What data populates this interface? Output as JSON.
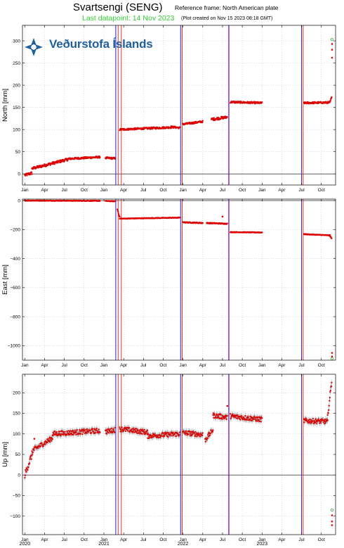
{
  "header": {
    "station": "Svartsengi (SENG)",
    "reference_frame": "Reference frame: North American plate",
    "last_datapoint": "Last datapoint: 14 Nov 2023",
    "plot_created": "(Plot created on Nov 15 2023 08:18 GMT)"
  },
  "logo": {
    "text": "Veðurstofa Íslands",
    "color": "#1f5f9d"
  },
  "colors": {
    "data": "#dd0000",
    "error": "#999999",
    "blue_line": "#2222cc",
    "red_line": "#ee3333",
    "purple_line": "#7722bb",
    "green_marker": "#33aa33",
    "grid": "#bbbbbb"
  },
  "chart_data": {
    "type": "scatter",
    "x_unit": "decimal year",
    "x_range": [
      2019.97,
      2023.93
    ],
    "month_ticks": [
      "Jan",
      "Apr",
      "Jul",
      "Oct",
      "Jan",
      "Apr",
      "Jul",
      "Oct",
      "Jan",
      "Apr",
      "Jul",
      "Oct",
      "Jan",
      "Apr",
      "Jul",
      "Oct"
    ],
    "year_labels": [
      "2020",
      "2021",
      "2022",
      "2023"
    ],
    "year_positions": [
      2020.0,
      2021.0,
      2022.0,
      2023.0
    ],
    "event_lines": [
      {
        "x": 2021.15,
        "color": "blue"
      },
      {
        "x": 2021.18,
        "color": "red"
      },
      {
        "x": 2021.22,
        "color": "red"
      },
      {
        "x": 2021.97,
        "color": "blue"
      },
      {
        "x": 2021.99,
        "color": "red"
      },
      {
        "x": 2022.58,
        "color": "purple"
      },
      {
        "x": 2023.5,
        "color": "blue"
      },
      {
        "x": 2023.52,
        "color": "red"
      }
    ],
    "panels": [
      {
        "ylabel": "North [mm]",
        "ylim": [
          -25,
          335
        ],
        "yticks": [
          0,
          50,
          100,
          150,
          200,
          250,
          300
        ],
        "ytick_labels": [
          "0",
          "50",
          "100",
          "150",
          "200",
          "250",
          "300"
        ],
        "error": 2,
        "series": [
          {
            "x0": 2020.0,
            "x1": 2020.09,
            "y0": -3,
            "y1": 2,
            "noise": 3
          },
          {
            "x0": 2020.09,
            "x1": 2020.55,
            "y0": 12,
            "y1": 33,
            "noise": 3
          },
          {
            "x0": 2020.55,
            "x1": 2020.95,
            "y0": 34,
            "y1": 38,
            "noise": 2
          },
          {
            "x0": 2021.02,
            "x1": 2021.14,
            "y0": 36,
            "y1": 35,
            "noise": 2
          },
          {
            "x0": 2021.2,
            "x1": 2021.85,
            "y0": 100,
            "y1": 105,
            "noise": 2
          },
          {
            "x0": 2021.85,
            "x1": 2021.96,
            "y0": 106,
            "y1": 104,
            "noise": 2
          },
          {
            "x0": 2022.0,
            "x1": 2022.25,
            "y0": 112,
            "y1": 118,
            "noise": 2
          },
          {
            "x0": 2022.36,
            "x1": 2022.56,
            "y0": 123,
            "y1": 128,
            "noise": 3
          },
          {
            "x0": 2022.6,
            "x1": 2023.0,
            "y0": 162,
            "y1": 160,
            "noise": 2
          },
          {
            "x0": 2023.53,
            "x1": 2023.86,
            "y0": 160,
            "y1": 161,
            "noise": 2
          },
          {
            "x0": 2023.86,
            "x1": 2023.88,
            "y0": 163,
            "y1": 172,
            "noise": 2
          }
        ],
        "extras": [
          {
            "x": 2023.885,
            "y": 303,
            "kind": "green"
          },
          {
            "x": 2023.885,
            "y": 293,
            "kind": "red"
          },
          {
            "x": 2023.885,
            "y": 280,
            "kind": "red"
          },
          {
            "x": 2023.885,
            "y": 262,
            "kind": "red"
          }
        ]
      },
      {
        "ylabel": "East [mm]",
        "ylim": [
          -1100,
          10
        ],
        "yticks": [
          0,
          -200,
          -400,
          -600,
          -800,
          -1000
        ],
        "ytick_labels": [
          "0",
          "−200",
          "−400",
          "−600",
          "−800",
          "−1000"
        ],
        "error": 3,
        "series": [
          {
            "x0": 2020.0,
            "x1": 2020.95,
            "y0": 0,
            "y1": -2,
            "noise": 2
          },
          {
            "x0": 2021.02,
            "x1": 2021.14,
            "y0": -3,
            "y1": -5,
            "noise": 2
          },
          {
            "x0": 2021.17,
            "x1": 2021.2,
            "y0": -60,
            "y1": -115,
            "noise": 4
          },
          {
            "x0": 2021.2,
            "x1": 2021.96,
            "y0": -125,
            "y1": -118,
            "noise": 2
          },
          {
            "x0": 2022.0,
            "x1": 2022.25,
            "y0": -150,
            "y1": -155,
            "noise": 3
          },
          {
            "x0": 2022.3,
            "x1": 2022.56,
            "y0": -155,
            "y1": -160,
            "noise": 3
          },
          {
            "x0": 2022.6,
            "x1": 2023.0,
            "y0": -218,
            "y1": -220,
            "noise": 2
          },
          {
            "x0": 2023.53,
            "x1": 2023.86,
            "y0": -232,
            "y1": -240,
            "noise": 2
          },
          {
            "x0": 2023.86,
            "x1": 2023.88,
            "y0": -245,
            "y1": -262,
            "noise": 2
          }
        ],
        "extras": [
          {
            "x": 2022.5,
            "y": -110,
            "kind": "red"
          },
          {
            "x": 2023.885,
            "y": -1050,
            "kind": "red"
          },
          {
            "x": 2023.885,
            "y": -1075,
            "kind": "red"
          },
          {
            "x": 2023.885,
            "y": -1090,
            "kind": "green"
          }
        ]
      },
      {
        "ylabel": "Up [mm]",
        "ylim": [
          -145,
          245
        ],
        "yticks": [
          -100,
          -50,
          0,
          50,
          100,
          150,
          200
        ],
        "ytick_labels": [
          "−100",
          "−50",
          "0",
          "50",
          "100",
          "150",
          "200"
        ],
        "error": 7,
        "series": [
          {
            "x0": 2020.0,
            "x1": 2020.1,
            "y0": 0,
            "y1": 55,
            "noise": 8
          },
          {
            "x0": 2020.1,
            "x1": 2020.35,
            "y0": 60,
            "y1": 90,
            "noise": 6
          },
          {
            "x0": 2020.35,
            "x1": 2020.95,
            "y0": 100,
            "y1": 108,
            "noise": 6
          },
          {
            "x0": 2021.02,
            "x1": 2021.14,
            "y0": 105,
            "y1": 110,
            "noise": 6
          },
          {
            "x0": 2021.2,
            "x1": 2021.55,
            "y0": 112,
            "y1": 104,
            "noise": 6
          },
          {
            "x0": 2021.55,
            "x1": 2021.96,
            "y0": 95,
            "y1": 100,
            "noise": 6
          },
          {
            "x0": 2022.0,
            "x1": 2022.25,
            "y0": 103,
            "y1": 98,
            "noise": 6
          },
          {
            "x0": 2022.28,
            "x1": 2022.38,
            "y0": 85,
            "y1": 110,
            "noise": 6
          },
          {
            "x0": 2022.38,
            "x1": 2022.56,
            "y0": 145,
            "y1": 140,
            "noise": 6
          },
          {
            "x0": 2022.6,
            "x1": 2023.0,
            "y0": 143,
            "y1": 135,
            "noise": 6
          },
          {
            "x0": 2023.53,
            "x1": 2023.83,
            "y0": 132,
            "y1": 130,
            "noise": 6
          },
          {
            "x0": 2023.83,
            "x1": 2023.88,
            "y0": 140,
            "y1": 228,
            "noise": 6
          }
        ],
        "extras": [
          {
            "x": 2020.12,
            "y": 88,
            "kind": "red"
          },
          {
            "x": 2022.56,
            "y": 168,
            "kind": "red"
          },
          {
            "x": 2023.885,
            "y": -85,
            "kind": "green"
          },
          {
            "x": 2023.885,
            "y": -98,
            "kind": "red"
          },
          {
            "x": 2023.885,
            "y": -113,
            "kind": "red"
          },
          {
            "x": 2023.885,
            "y": -122,
            "kind": "red"
          }
        ]
      }
    ]
  }
}
